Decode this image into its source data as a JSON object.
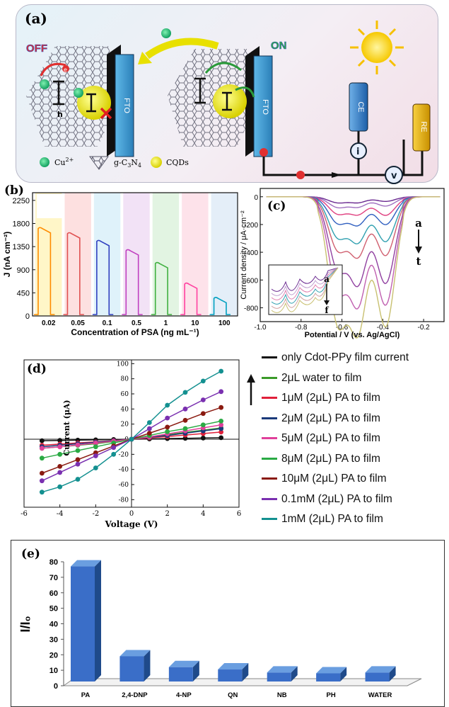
{
  "panel_a": {
    "label": "(a)",
    "off": "OFF",
    "on": "ON",
    "fto": "FTO",
    "ce": "CE",
    "re": "RE",
    "i": "i",
    "v": "v",
    "electron": "e",
    "hole": "h",
    "legend_cu": "Cu",
    "legend_cu_sup": "2+",
    "legend_gcn": "g-C",
    "legend_gcn_sub1": "3",
    "legend_gcn_mid": "N",
    "legend_gcn_sub2": "4",
    "legend_cqd": "CQDs"
  },
  "legend_d": [
    {
      "name": "only Cdot-PPy film current",
      "color": "#111111"
    },
    {
      "name": "2μL water to film",
      "color": "#3a9a2a"
    },
    {
      "name": "1μM (2μL) PA to film",
      "color": "#e0203a"
    },
    {
      "name": "2μM (2μL) PA to film",
      "color": "#1a3a7a"
    },
    {
      "name": "5μM (2μL) PA to film",
      "color": "#e0409a"
    },
    {
      "name": "8μM (2μL) PA to film",
      "color": "#2aaa44"
    },
    {
      "name": "10μM (2μL) PA to film",
      "color": "#8a1a10"
    },
    {
      "name": "0.1mM (2μL) PA to film",
      "color": "#7a30b0"
    },
    {
      "name": "1mM (2μL) PA to film",
      "color": "#139090"
    }
  ],
  "chart_data": [
    {
      "id": "b",
      "type": "line",
      "label": "(b)",
      "xlabel": "Concentration of PSA (ng mL⁻¹)",
      "ylabel": "J (nA cm⁻²)",
      "categories": [
        "0.02",
        "0.05",
        "0.1",
        "0.5",
        "1",
        "10",
        "100"
      ],
      "values": [
        1700,
        1600,
        1450,
        1270,
        1020,
        620,
        340
      ],
      "colors": [
        "#ff8c00",
        "#e05050",
        "#3040c0",
        "#c040c0",
        "#40b040",
        "#ff40a0",
        "#00a0c0"
      ],
      "band_colors": [
        "#fff6c8",
        "#fde0e0",
        "#dff2fa",
        "#f2e2f6",
        "#e2f4e2",
        "#fde2ea",
        "#e4eef8"
      ],
      "yticks": [
        0,
        450,
        900,
        1350,
        1800,
        2250
      ],
      "ylim": [
        0,
        2400
      ]
    },
    {
      "id": "c",
      "type": "line",
      "label": "(c)",
      "xlabel": "Potential / V (vs. Ag/AgCl)",
      "ylabel": "Current density / μA·cm⁻²",
      "xticks": [
        -1.0,
        -0.8,
        -0.6,
        -0.4,
        -0.2
      ],
      "yticks": [
        0,
        -200,
        -400,
        -600,
        -800
      ],
      "xlim": [
        -1.0,
        -0.1
      ],
      "ylim": [
        -900,
        60
      ],
      "peaks": [
        -0.62,
        -0.52,
        -0.385
      ],
      "series_depths": [
        [
          -40,
          -35,
          -30
        ],
        [
          -70,
          -60,
          -60
        ],
        [
          -110,
          -100,
          -120
        ],
        [
          -170,
          -160,
          -180
        ],
        [
          -260,
          -260,
          -290
        ],
        [
          -340,
          -340,
          -380
        ],
        [
          -460,
          -500,
          -560
        ],
        [
          -600,
          -620,
          -700
        ],
        [
          -820,
          -780,
          -840
        ]
      ],
      "colors": [
        "#6a2a90",
        "#a070c0",
        "#e04080",
        "#3060c0",
        "#30a0b0",
        "#d06070",
        "#9040a0",
        "#c060b0",
        "#c8c070"
      ],
      "arrow_top": "a",
      "arrow_bottom": "t",
      "inset_arrow_top": "a",
      "inset_arrow_bottom": "f"
    },
    {
      "id": "d",
      "type": "line",
      "label": "(d)",
      "xlabel": "Voltage (V)",
      "ylabel": "Current (μA)",
      "x": [
        -5,
        -4,
        -3,
        -2,
        -1,
        0,
        1,
        2,
        3,
        4,
        5
      ],
      "xticks": [
        -6,
        -4,
        -2,
        0,
        2,
        4,
        6
      ],
      "yticks": [
        -80,
        -60,
        -40,
        -20,
        0,
        20,
        40,
        60,
        80,
        100
      ],
      "xlim": [
        -6,
        6
      ],
      "ylim": [
        -90,
        105
      ],
      "series": [
        {
          "name": "only Cdot-PPy film current",
          "values": [
            -2,
            -1.6,
            -1.2,
            -0.8,
            -0.4,
            0,
            0.4,
            0.8,
            1.2,
            1.6,
            2
          ]
        },
        {
          "name": "2μL water to film",
          "values": [
            -12,
            -10,
            -8,
            -6,
            -3,
            0,
            3,
            6,
            9,
            12,
            15
          ]
        },
        {
          "name": "1μM (2μL) PA to film",
          "values": [
            -8,
            -6.5,
            -5,
            -3.5,
            -1.8,
            0,
            1.8,
            3.5,
            5.5,
            7.5,
            9.5
          ]
        },
        {
          "name": "2μM (2μL) PA to film",
          "values": [
            -10,
            -8,
            -6,
            -4,
            -2,
            0,
            2.5,
            5,
            8,
            11,
            14
          ]
        },
        {
          "name": "5μM (2μL) PA to film",
          "values": [
            -12,
            -10,
            -7.5,
            -5,
            -2.5,
            0,
            3,
            7,
            11,
            15,
            19
          ]
        },
        {
          "name": "8μM (2μL) PA to film",
          "values": [
            -25,
            -20,
            -15,
            -10,
            -5,
            0,
            5,
            10,
            14,
            19,
            24
          ]
        },
        {
          "name": "10μM (2μL) PA to film",
          "values": [
            -45,
            -36,
            -27,
            -18,
            -9,
            0,
            8,
            16,
            25,
            34,
            42
          ]
        },
        {
          "name": "0.1mM (2μL) PA to film",
          "values": [
            -55,
            -44,
            -33,
            -22,
            -11,
            0,
            14,
            28,
            40,
            52,
            63
          ]
        },
        {
          "name": "1mM (2μL) PA to film",
          "values": [
            -70,
            -63,
            -53,
            -38,
            -20,
            0,
            22,
            45,
            62,
            77,
            90
          ]
        }
      ]
    },
    {
      "id": "e",
      "type": "bar",
      "label": "(e)",
      "ylabel": "I/I₀",
      "categories": [
        "PA",
        "2,4-DNP",
        "4-NP",
        "QN",
        "NB",
        "PH",
        "WATER"
      ],
      "values": [
        77,
        19,
        12,
        10.5,
        8.5,
        8,
        8.5
      ],
      "yticks": [
        0,
        10,
        20,
        30,
        40,
        50,
        60,
        70,
        80
      ],
      "ylim": [
        0,
        80
      ],
      "color": "#3a6ec8"
    }
  ]
}
